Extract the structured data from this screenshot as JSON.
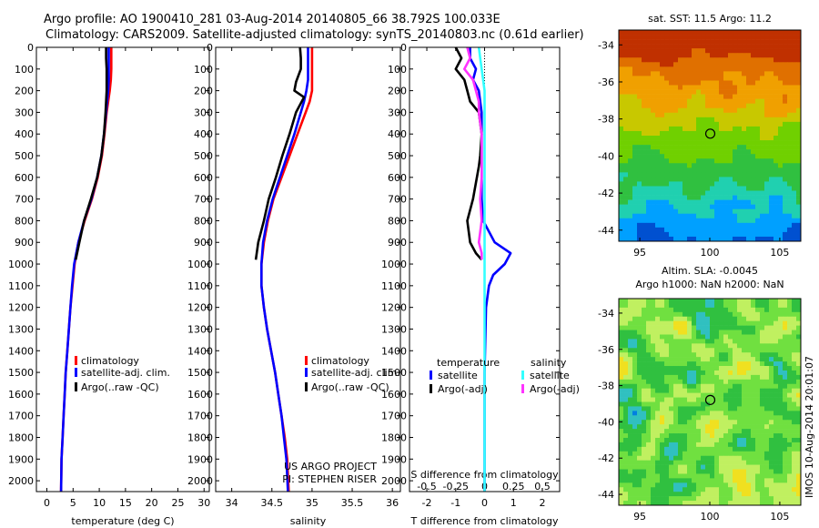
{
  "header": {
    "line1": "Argo profile: AO 1900410_281 03-Aug-2014 20140805_66 38.792S 100.033E",
    "line2": "Climatology: CARS2009. Satellite-adjusted climatology: synTS_20140803.nc (0.61d earlier)"
  },
  "stamp": "IMOS 10-Aug-2014 20:01:07",
  "colors": {
    "climatology": "#ff0000",
    "satellite": "#0000ff",
    "argo": "#000000",
    "sat_salinity": "#33ffff",
    "argo_salinity": "#ff33ff"
  },
  "chart_data": [
    {
      "type": "line",
      "id": "temperature",
      "xlabel": "temperature (deg C)",
      "ylabel": "",
      "xlim": [
        -2,
        31
      ],
      "ylim": [
        2050,
        0
      ],
      "xticks": [
        0,
        5,
        10,
        15,
        20,
        25,
        30
      ],
      "yticks": [
        0,
        100,
        200,
        300,
        400,
        500,
        600,
        700,
        800,
        900,
        1000,
        1100,
        1200,
        1300,
        1400,
        1500,
        1600,
        1700,
        1800,
        1900,
        2000
      ],
      "legend": [
        "climatology",
        "satellite-adj. clim.",
        "Argo(..raw -QC)"
      ],
      "legend_position": "lower-center",
      "series": [
        {
          "name": "climatology",
          "color": "#ff0000",
          "x": [
            12.3,
            12.3,
            12.3,
            12.2,
            12.0,
            11.7,
            11.4,
            11.0,
            10.5,
            9.7,
            8.6,
            7.2,
            6.0,
            5.3,
            4.9,
            4.5,
            4.2,
            3.9,
            3.6,
            3.4,
            3.2,
            3.0,
            2.8,
            2.7
          ],
          "y": [
            0,
            50,
            100,
            150,
            200,
            250,
            300,
            400,
            500,
            600,
            700,
            800,
            900,
            1000,
            1100,
            1200,
            1300,
            1400,
            1500,
            1600,
            1700,
            1800,
            1900,
            2050
          ]
        },
        {
          "name": "satellite-adj. clim.",
          "color": "#0000ff",
          "x": [
            11.8,
            11.8,
            11.8,
            11.8,
            11.7,
            11.5,
            11.3,
            10.9,
            10.4,
            9.6,
            8.5,
            7.1,
            6.0,
            5.2,
            4.8,
            4.5,
            4.2,
            3.9,
            3.6,
            3.4,
            3.2,
            3.0,
            2.8,
            2.7
          ],
          "y": [
            0,
            50,
            100,
            150,
            200,
            250,
            300,
            400,
            500,
            600,
            700,
            800,
            900,
            1000,
            1100,
            1200,
            1300,
            1400,
            1500,
            1600,
            1700,
            1800,
            1900,
            2050
          ]
        },
        {
          "name": "Argo(..raw -QC)",
          "color": "#000000",
          "x": [
            11.3,
            11.3,
            11.4,
            11.4,
            11.4,
            11.3,
            11.2,
            10.9,
            10.4,
            9.6,
            8.4,
            7.1,
            6.2,
            5.5
          ],
          "y": [
            0,
            50,
            100,
            150,
            200,
            250,
            300,
            400,
            500,
            600,
            700,
            800,
            900,
            980
          ]
        }
      ]
    },
    {
      "type": "line",
      "id": "salinity",
      "xlabel": "salinity",
      "ylabel": "",
      "xlim": [
        33.8,
        36.1
      ],
      "ylim": [
        2050,
        0
      ],
      "xticks": [
        34,
        34.5,
        35,
        35.5,
        36
      ],
      "yticks": [
        0,
        100,
        200,
        300,
        400,
        500,
        600,
        700,
        800,
        900,
        1000,
        1100,
        1200,
        1300,
        1400,
        1500,
        1600,
        1700,
        1800,
        1900,
        2000
      ],
      "legend": [
        "climatology",
        "satellite-adj. clim.",
        "Argo(..raw -QC)"
      ],
      "legend_position": "lower-center",
      "annotation": [
        "US ARGO PROJECT",
        "PI: STEPHEN RISER"
      ],
      "series": [
        {
          "name": "climatology",
          "color": "#ff0000",
          "x": [
            35.0,
            35.0,
            35.0,
            35.0,
            35.0,
            34.97,
            34.92,
            34.82,
            34.72,
            34.62,
            34.52,
            34.45,
            34.4,
            34.37,
            34.37,
            34.4,
            34.44,
            34.49,
            34.54,
            34.58,
            34.62,
            34.66,
            34.69,
            34.71
          ],
          "y": [
            0,
            50,
            100,
            150,
            200,
            250,
            300,
            400,
            500,
            600,
            700,
            800,
            900,
            1000,
            1100,
            1200,
            1300,
            1400,
            1500,
            1600,
            1700,
            1800,
            1900,
            2050
          ]
        },
        {
          "name": "satellite-adj. clim.",
          "color": "#0000ff",
          "x": [
            34.95,
            34.95,
            34.95,
            34.95,
            34.93,
            34.9,
            34.86,
            34.78,
            34.69,
            34.6,
            34.51,
            34.44,
            34.39,
            34.37,
            34.37,
            34.4,
            34.44,
            34.49,
            34.54,
            34.58,
            34.62,
            34.65,
            34.68,
            34.7
          ],
          "y": [
            0,
            50,
            100,
            150,
            200,
            250,
            300,
            400,
            500,
            600,
            700,
            800,
            900,
            1000,
            1100,
            1200,
            1300,
            1400,
            1500,
            1600,
            1700,
            1800,
            1900,
            2050
          ]
        },
        {
          "name": "Argo(..raw -QC)",
          "color": "#000000",
          "x": [
            34.85,
            34.86,
            34.86,
            34.8,
            34.78,
            34.9,
            34.8,
            34.72,
            34.63,
            34.55,
            34.46,
            34.4,
            34.33,
            34.3
          ],
          "y": [
            0,
            50,
            100,
            160,
            200,
            230,
            300,
            400,
            500,
            600,
            700,
            800,
            900,
            980
          ]
        }
      ]
    },
    {
      "type": "line",
      "id": "difference",
      "xlabel": "T difference from climatology",
      "top_label": "S difference from climatology",
      "xlim": [
        -2.6,
        2.6
      ],
      "ylim": [
        2050,
        0
      ],
      "xticks": [
        -2,
        -1,
        0,
        1,
        2
      ],
      "top_ticks": [
        "-0.5",
        "-0.25",
        "0",
        "0.25",
        "0.5"
      ],
      "top_ticks_pos": [
        -2,
        -1,
        0,
        1,
        2
      ],
      "yticks": [
        0,
        100,
        200,
        300,
        400,
        500,
        600,
        700,
        800,
        900,
        1000,
        1100,
        1200,
        1300,
        1400,
        1500,
        1600,
        1700,
        1800,
        1900,
        2000
      ],
      "legend_groups": [
        {
          "heading": "temperature",
          "items": [
            "satellite",
            "Argo(-adj)"
          ]
        },
        {
          "heading": "salinity",
          "items": [
            "satellite",
            "Argo(-adj)"
          ]
        }
      ],
      "legend_position": "lower-center",
      "series": [
        {
          "name": "temperature satellite",
          "color": "#0000ff",
          "x": [
            -0.5,
            -0.5,
            -0.3,
            -0.4,
            -0.2,
            -0.15,
            -0.1,
            -0.1,
            -0.1,
            -0.1,
            -0.1,
            -0.05,
            0.35,
            0.9,
            0.7,
            0.3,
            0.15,
            0.05,
            0.0,
            0.0
          ],
          "y": [
            0,
            50,
            100,
            150,
            200,
            250,
            300,
            400,
            500,
            600,
            700,
            800,
            900,
            950,
            1000,
            1050,
            1100,
            1200,
            1500,
            2050
          ]
        },
        {
          "name": "temperature Argo(-adj)",
          "color": "#000000",
          "x": [
            -1.0,
            -0.8,
            -1.0,
            -0.7,
            -0.6,
            -0.5,
            -0.2,
            -0.1,
            -0.15,
            -0.2,
            -0.4,
            -0.6,
            -0.5,
            -0.3,
            -0.1
          ],
          "y": [
            0,
            50,
            100,
            150,
            200,
            250,
            300,
            400,
            500,
            550,
            700,
            800,
            900,
            950,
            980
          ]
        },
        {
          "name": "salinity satellite",
          "color": "#33ffff",
          "x": [
            -0.2,
            -0.15,
            -0.1,
            -0.05,
            0.0,
            0.0,
            0.0,
            0.0,
            0.0,
            0.0,
            0.0,
            0.0,
            0.0,
            0.0
          ],
          "y": [
            0,
            50,
            100,
            150,
            200,
            300,
            400,
            500,
            600,
            800,
            1000,
            1200,
            1600,
            2050
          ]
        },
        {
          "name": "salinity Argo(-adj)",
          "color": "#ff33ff",
          "x": [
            -0.6,
            -0.5,
            -0.7,
            -0.4,
            -0.3,
            -0.2,
            -0.2,
            -0.1,
            -0.1,
            -0.1,
            -0.15,
            -0.1,
            -0.2,
            -0.1,
            -0.1
          ],
          "y": [
            0,
            50,
            100,
            150,
            200,
            250,
            300,
            400,
            500,
            600,
            700,
            800,
            900,
            950,
            980
          ]
        }
      ]
    },
    {
      "type": "heatmap",
      "id": "sst-map",
      "title": "sat. SST: 11.5 Argo: 11.2",
      "xlim": [
        93.5,
        106.5
      ],
      "ylim": [
        -44.6,
        -33.2
      ],
      "xticks": [
        95,
        100,
        105
      ],
      "yticks": [
        -34,
        -36,
        -38,
        -40,
        -42,
        -44
      ],
      "marker": {
        "lon": 100.033,
        "lat": -38.792
      },
      "palette": [
        "#0050d0",
        "#00a0ff",
        "#20d0b0",
        "#30c040",
        "#70d000",
        "#c8c800",
        "#f0a000",
        "#e07000",
        "#c03000"
      ]
    },
    {
      "type": "heatmap",
      "id": "sla-map",
      "title": "Altim. SLA: -0.0045",
      "subtitle": "Argo h1000: NaN h2000: NaN",
      "xlim": [
        93.5,
        106.5
      ],
      "ylim": [
        -44.6,
        -33.2
      ],
      "xticks": [
        95,
        100,
        105
      ],
      "yticks": [
        -34,
        -36,
        -38,
        -40,
        -42,
        -44
      ],
      "marker": {
        "lon": 100.033,
        "lat": -38.792
      },
      "palette": [
        "#0080e0",
        "#30c0c0",
        "#30c040",
        "#70e040",
        "#c0f060",
        "#f0e020",
        "#f0a000"
      ]
    }
  ]
}
